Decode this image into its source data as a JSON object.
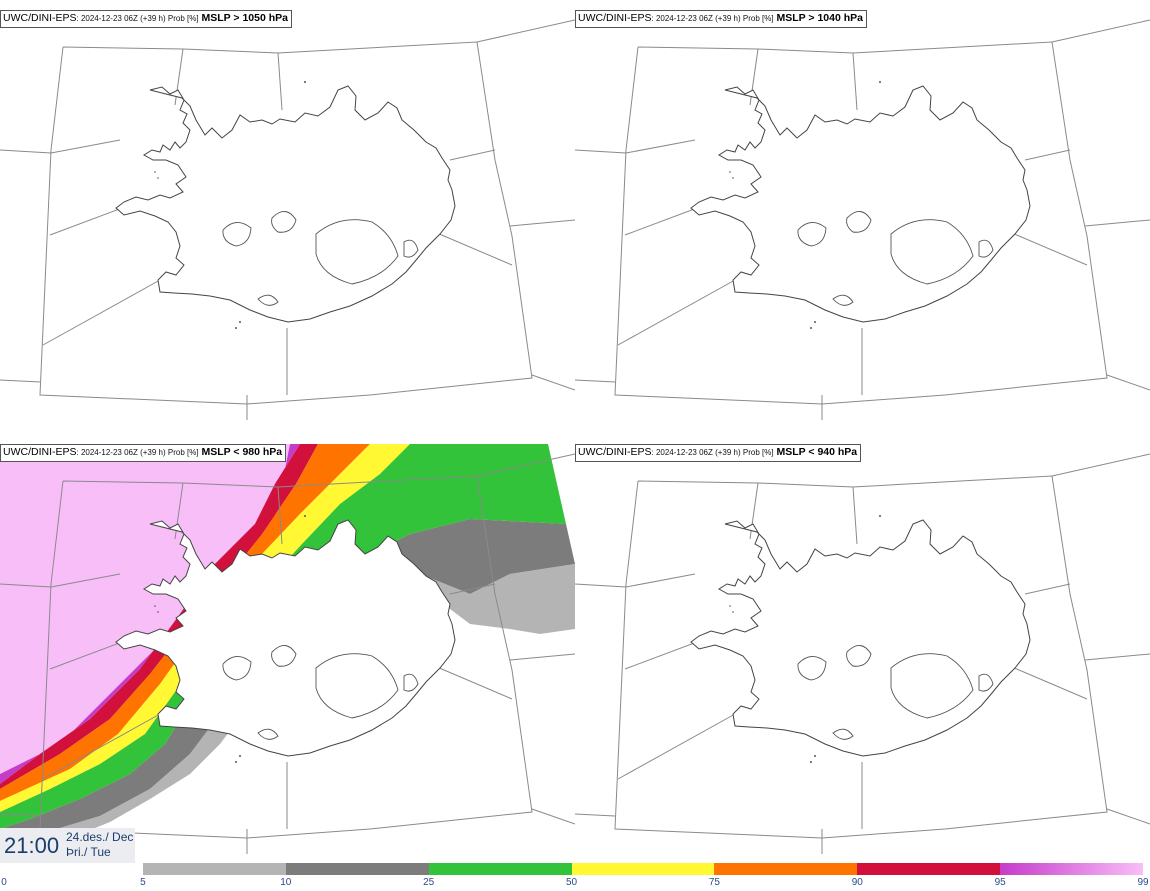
{
  "panels": [
    {
      "source": "UWC/DINI-EPS",
      "meta": ": 2024-12-23 06Z (+39 h) Prob [%]",
      "threshold": " MSLP > 1050 hPa"
    },
    {
      "source": "UWC/DINI-EPS",
      "meta": ": 2024-12-23 06Z (+39 h) Prob [%]",
      "threshold": " MSLP > 1040 hPa"
    },
    {
      "source": "UWC/DINI-EPS",
      "meta": ": 2024-12-23 06Z (+39 h) Prob [%]",
      "threshold": " MSLP < 980 hPa"
    },
    {
      "source": "UWC/DINI-EPS",
      "meta": ": 2024-12-23 06Z (+39 h) Prob [%]",
      "threshold": " MSLP < 940 hPa"
    }
  ],
  "time": {
    "clock": "21:00",
    "date_line1": "24.des./ Dec",
    "date_line2": "Þri./ Tue"
  },
  "colorbar": {
    "ticks": [
      "0",
      "5",
      "10",
      "25",
      "50",
      "75",
      "90",
      "95",
      "99"
    ],
    "colors": [
      "#ffffff",
      "#b4b4b4",
      "#7c7c7c",
      "#33c33a",
      "#fff833",
      "#ff7400",
      "#d2103c",
      "#c53cc9",
      "#f8bef8"
    ]
  }
}
